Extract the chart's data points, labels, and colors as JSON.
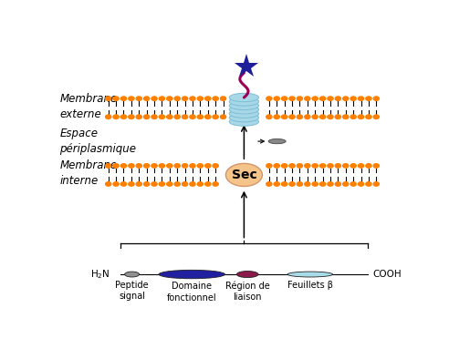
{
  "bg_color": "#ffffff",
  "membrane_orange": "#FF8000",
  "membrane_line_color": "#000000",
  "sec_color": "#F5C48A",
  "sec_text": "Sec",
  "beta_barrel_color": "#A8D8E8",
  "beta_barrel_edge": "#7ABED4",
  "star_color": "#1E1E9A",
  "curly_color": "#990055",
  "peptide_signal_color": "#909090",
  "domain_fonctionnel_color": "#2020A0",
  "region_liaison_color": "#8B1A4A",
  "feuillets_beta_color": "#A8DCE8",
  "label_membrane_externe": "Membrane\nexterne",
  "label_espace": "Espace\npériplasmique",
  "label_membrane_interne": "Membrane\ninterne",
  "label_h2n": "H$_2$N",
  "label_cooh": "COOH",
  "label_peptide": "Peptide\nsignal",
  "label_domaine": "Domaine\nfonctionnel",
  "label_region": "Région de\nliaison",
  "label_feuillets": "Feuillets β",
  "fig_width": 4.92,
  "fig_height": 3.83,
  "dpi": 100
}
